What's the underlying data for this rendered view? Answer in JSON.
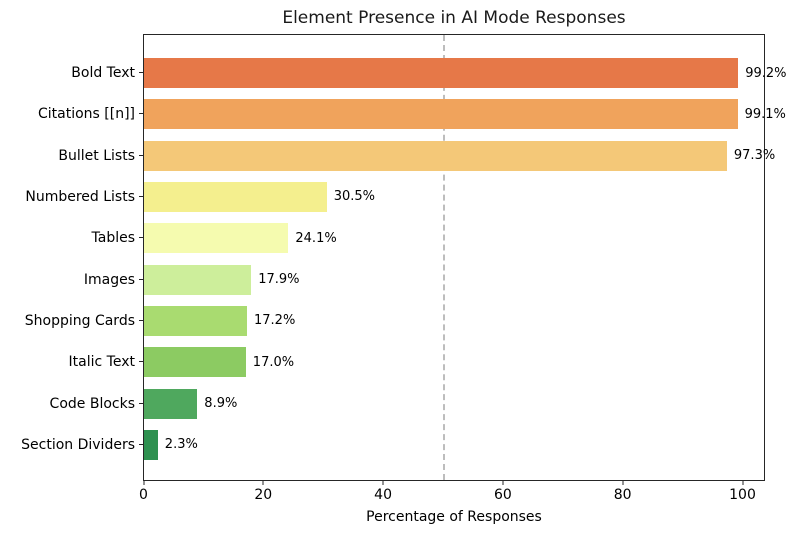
{
  "chart_data": {
    "type": "bar",
    "orientation": "horizontal",
    "title": "Element Presence in AI Mode Responses",
    "xlabel": "Percentage of Responses",
    "categories": [
      "Bold Text",
      "Citations [[n]]",
      "Bullet Lists",
      "Numbered Lists",
      "Tables",
      "Images",
      "Shopping Cards",
      "Italic Text",
      "Code Blocks",
      "Section Dividers"
    ],
    "values": [
      99.2,
      99.1,
      97.3,
      30.5,
      24.1,
      17.9,
      17.2,
      17.0,
      8.9,
      2.3
    ],
    "value_labels": [
      "99.2%",
      "99.1%",
      "97.3%",
      "30.5%",
      "24.1%",
      "17.9%",
      "17.2%",
      "17.0%",
      "8.9%",
      "2.3%"
    ],
    "bar_colors": [
      "#e67848",
      "#f0a35c",
      "#f4c878",
      "#f4ef8e",
      "#f5fbaf",
      "#cdee9b",
      "#a9db70",
      "#8ccb62",
      "#4fa85e",
      "#2e9150"
    ],
    "xticks": [
      0,
      20,
      40,
      60,
      80,
      100
    ],
    "xlim": [
      0,
      103.5
    ],
    "ylim_categories": 10,
    "reference_line": {
      "x": 50,
      "style": "dashed",
      "color": "#bdbdbd"
    },
    "grid": false,
    "legend": false,
    "axis_color": "#262626",
    "text_color": "#000000",
    "background_color": "#ffffff"
  }
}
